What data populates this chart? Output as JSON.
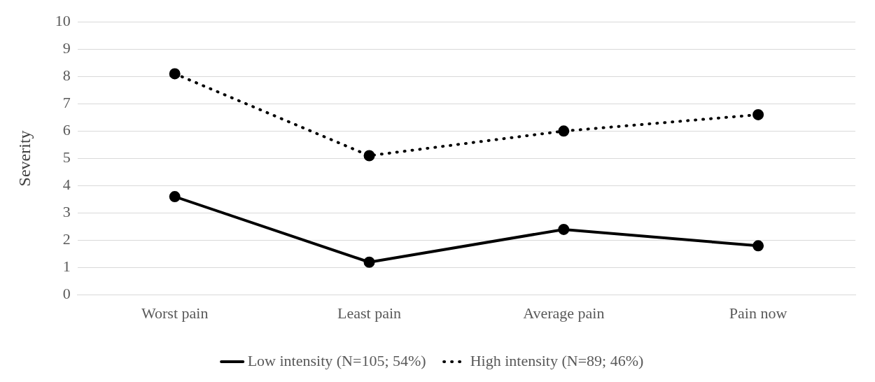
{
  "chart_data": {
    "type": "line",
    "ylabel": "Severity",
    "categories": [
      "Worst pain",
      "Least pain",
      "Average pain",
      "Pain now"
    ],
    "series": [
      {
        "name": "Low intensity (N=105; 54%)",
        "color": "#000000",
        "values": [
          3.6,
          1.2,
          2.4,
          1.8
        ],
        "line_style": "solid"
      },
      {
        "name": "High intensity (N=89; 46%)",
        "color": "#000000",
        "values": [
          8.1,
          5.1,
          6.0,
          6.6
        ],
        "line_style": "dotted"
      }
    ],
    "ylim": [
      0,
      10
    ],
    "yticks": [
      0,
      1,
      2,
      3,
      4,
      5,
      6,
      7,
      8,
      9,
      10
    ],
    "grid": "y",
    "legend": "bottom",
    "marker": "circle"
  }
}
